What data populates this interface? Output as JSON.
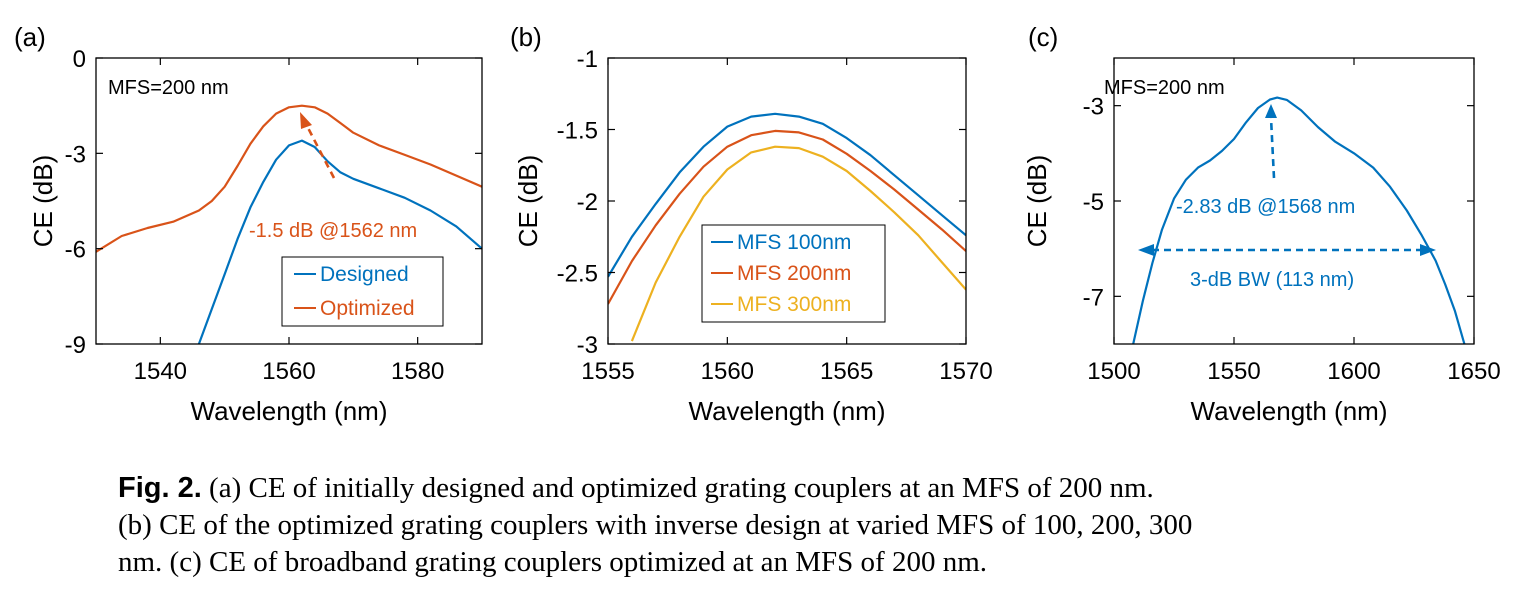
{
  "colors": {
    "blue": "#0072BD",
    "orange": "#D95319",
    "yellow": "#EDB120",
    "axis": "#000000"
  },
  "caption": {
    "lead": "Fig. 2.",
    "line1": "(a) CE of initially designed and optimized grating couplers at an MFS of 200 nm.",
    "line2": "(b) CE of the optimized grating couplers with inverse design at varied MFS of 100, 200, 300",
    "line3": "nm.  (c) CE of broadband grating couplers optimized at an MFS of 200 nm."
  },
  "chart_data": [
    {
      "panel_label": "(a)",
      "type": "line",
      "xlabel": "Wavelength (nm)",
      "ylabel": "CE (dB)",
      "xlim": [
        1530,
        1590
      ],
      "ylim": [
        -9,
        0
      ],
      "xticks": [
        1540,
        1560,
        1580
      ],
      "yticks": [
        0,
        -3,
        -6,
        -9
      ],
      "annotation_top": "MFS=200 nm",
      "annotation_peak": "-1.5 dB @1562 nm",
      "legend_position": "bottom-right",
      "series": [
        {
          "name": "Designed",
          "color": "#0072BD",
          "x": [
            1546,
            1548,
            1550,
            1552,
            1554,
            1556,
            1558,
            1560,
            1562,
            1564,
            1566,
            1568,
            1570,
            1574,
            1578,
            1582,
            1586,
            1590
          ],
          "y": [
            -9.0,
            -7.9,
            -6.8,
            -5.7,
            -4.7,
            -3.9,
            -3.2,
            -2.75,
            -2.6,
            -2.8,
            -3.25,
            -3.6,
            -3.8,
            -4.1,
            -4.4,
            -4.8,
            -5.3,
            -6.0
          ]
        },
        {
          "name": "Optimized",
          "color": "#D95319",
          "x": [
            1530,
            1534,
            1538,
            1542,
            1546,
            1548,
            1550,
            1552,
            1554,
            1556,
            1558,
            1560,
            1562,
            1564,
            1566,
            1568,
            1570,
            1574,
            1578,
            1582,
            1586,
            1590
          ],
          "y": [
            -6.1,
            -5.6,
            -5.35,
            -5.15,
            -4.8,
            -4.5,
            -4.05,
            -3.4,
            -2.7,
            -2.15,
            -1.75,
            -1.55,
            -1.5,
            -1.55,
            -1.75,
            -2.05,
            -2.35,
            -2.75,
            -3.05,
            -3.35,
            -3.7,
            -4.05
          ]
        }
      ]
    },
    {
      "panel_label": "(b)",
      "type": "line",
      "xlabel": "Wavelength (nm)",
      "ylabel": "CE (dB)",
      "xlim": [
        1555,
        1570
      ],
      "ylim": [
        -3,
        -1
      ],
      "xticks": [
        1555,
        1560,
        1565,
        1570
      ],
      "yticks": [
        -1,
        -1.5,
        -2,
        -2.5,
        -3
      ],
      "legend_position": "bottom-left",
      "series": [
        {
          "name": "MFS 100nm",
          "color": "#0072BD",
          "x": [
            1555,
            1556,
            1557,
            1558,
            1559,
            1560,
            1561,
            1562,
            1563,
            1564,
            1565,
            1566,
            1567,
            1568,
            1569,
            1570
          ],
          "y": [
            -2.53,
            -2.25,
            -2.02,
            -1.8,
            -1.62,
            -1.48,
            -1.41,
            -1.39,
            -1.41,
            -1.46,
            -1.56,
            -1.68,
            -1.82,
            -1.96,
            -2.1,
            -2.24
          ]
        },
        {
          "name": "MFS 200nm",
          "color": "#D95319",
          "x": [
            1555,
            1556,
            1557,
            1558,
            1559,
            1560,
            1561,
            1562,
            1563,
            1564,
            1565,
            1566,
            1567,
            1568,
            1569,
            1570
          ],
          "y": [
            -2.72,
            -2.42,
            -2.17,
            -1.95,
            -1.76,
            -1.62,
            -1.54,
            -1.51,
            -1.52,
            -1.57,
            -1.67,
            -1.79,
            -1.92,
            -2.06,
            -2.2,
            -2.35
          ]
        },
        {
          "name": "MFS 300nm",
          "color": "#EDB120",
          "x": [
            1556,
            1557,
            1558,
            1559,
            1560,
            1561,
            1562,
            1563,
            1564,
            1565,
            1566,
            1567,
            1568,
            1569,
            1570
          ],
          "y": [
            -2.98,
            -2.57,
            -2.25,
            -1.97,
            -1.78,
            -1.66,
            -1.62,
            -1.63,
            -1.69,
            -1.79,
            -1.93,
            -2.08,
            -2.24,
            -2.43,
            -2.62
          ]
        }
      ]
    },
    {
      "panel_label": "(c)",
      "type": "line",
      "xlabel": "Wavelength (nm)",
      "ylabel": "CE (dB)",
      "xlim": [
        1500,
        1650
      ],
      "ylim": [
        -8,
        -2
      ],
      "xticks": [
        1500,
        1550,
        1600,
        1650
      ],
      "yticks": [
        -3,
        -5,
        -7
      ],
      "annotation_top": "MFS=200 nm",
      "annotation_peak": "-2.83 dB @1568 nm",
      "annotation_bw": "3-dB BW (113 nm)",
      "series": [
        {
          "name": "",
          "color": "#0072BD",
          "x": [
            1508,
            1512,
            1516,
            1520,
            1525,
            1530,
            1535,
            1540,
            1545,
            1550,
            1555,
            1560,
            1565,
            1568,
            1572,
            1578,
            1585,
            1592,
            1600,
            1608,
            1615,
            1622,
            1628,
            1634,
            1638,
            1642,
            1646
          ],
          "y": [
            -8.0,
            -7.1,
            -6.3,
            -5.6,
            -4.95,
            -4.55,
            -4.3,
            -4.15,
            -3.95,
            -3.7,
            -3.35,
            -3.05,
            -2.87,
            -2.83,
            -2.88,
            -3.1,
            -3.45,
            -3.75,
            -4.0,
            -4.3,
            -4.7,
            -5.2,
            -5.7,
            -6.25,
            -6.75,
            -7.3,
            -8.0
          ]
        }
      ]
    }
  ]
}
